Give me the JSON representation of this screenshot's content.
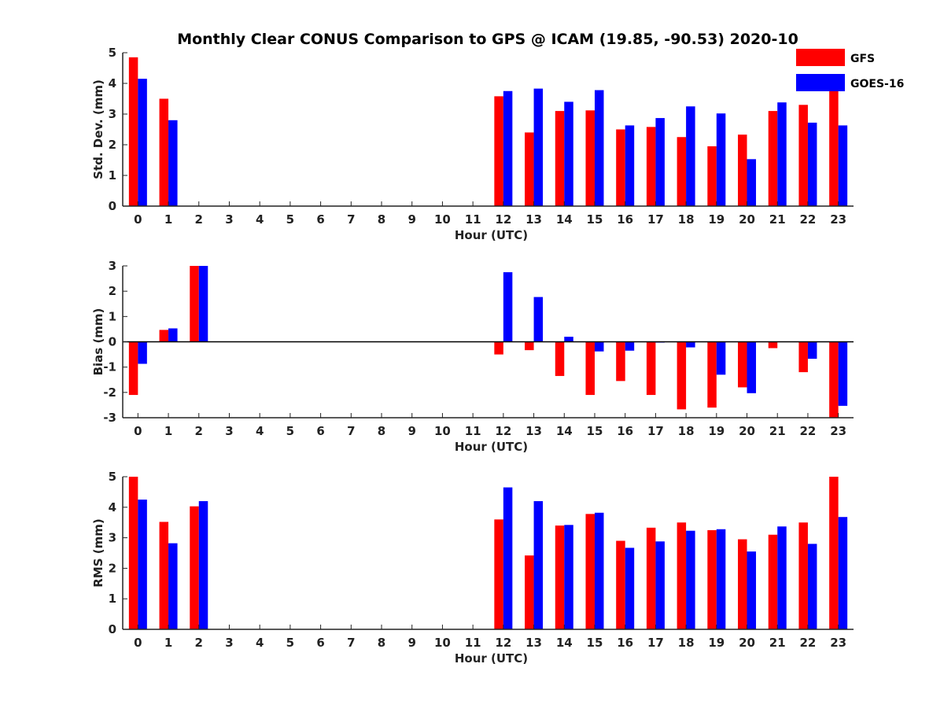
{
  "title": "Monthly Clear CONUS Comparison to GPS @ ICAM (19.85, -90.53) 2020-10",
  "legend": [
    {
      "name": "GFS",
      "color": "#ff0000"
    },
    {
      "name": "GOES-16",
      "color": "#0000ff"
    }
  ],
  "chart_data": [
    {
      "type": "bar",
      "xlabel": "Hour (UTC)",
      "ylabel": "Std. Dev. (mm)",
      "ylim": [
        0,
        5
      ],
      "yticks": [
        "0",
        "1",
        "2",
        "3",
        "4",
        "5"
      ],
      "categories": [
        "0",
        "1",
        "2",
        "3",
        "4",
        "5",
        "6",
        "7",
        "8",
        "9",
        "10",
        "11",
        "12",
        "13",
        "14",
        "15",
        "16",
        "17",
        "18",
        "19",
        "20",
        "21",
        "22",
        "23"
      ],
      "series": [
        {
          "name": "GFS",
          "color": "#ff0000",
          "values": [
            4.85,
            3.5,
            null,
            null,
            null,
            null,
            null,
            null,
            null,
            null,
            null,
            null,
            3.58,
            2.4,
            3.1,
            3.12,
            2.5,
            2.58,
            2.25,
            1.95,
            2.33,
            3.1,
            3.3,
            4.0
          ]
        },
        {
          "name": "GOES-16",
          "color": "#0000ff",
          "values": [
            4.15,
            2.8,
            null,
            null,
            null,
            null,
            null,
            null,
            null,
            null,
            null,
            null,
            3.75,
            3.83,
            3.4,
            3.78,
            2.63,
            2.87,
            3.25,
            3.02,
            1.53,
            3.38,
            2.72,
            2.63
          ]
        }
      ]
    },
    {
      "type": "bar",
      "xlabel": "Hour (UTC)",
      "ylabel": "Bias (mm)",
      "ylim": [
        -3,
        3
      ],
      "yticks": [
        "-3",
        "-2",
        "-1",
        "0",
        "1",
        "2",
        "3"
      ],
      "zeroline": true,
      "categories": [
        "0",
        "1",
        "2",
        "3",
        "4",
        "5",
        "6",
        "7",
        "8",
        "9",
        "10",
        "11",
        "12",
        "13",
        "14",
        "15",
        "16",
        "17",
        "18",
        "19",
        "20",
        "21",
        "22",
        "23"
      ],
      "series": [
        {
          "name": "GFS",
          "color": "#ff0000",
          "values": [
            -2.1,
            0.47,
            3.0,
            null,
            null,
            null,
            null,
            null,
            null,
            null,
            null,
            null,
            -0.5,
            -0.33,
            -1.35,
            -2.1,
            -1.55,
            -2.1,
            -2.67,
            -2.6,
            -1.8,
            -0.25,
            -1.2,
            -3.0
          ]
        },
        {
          "name": "GOES-16",
          "color": "#0000ff",
          "values": [
            -0.87,
            0.53,
            3.0,
            null,
            null,
            null,
            null,
            null,
            null,
            null,
            null,
            null,
            2.75,
            1.77,
            0.2,
            -0.38,
            -0.35,
            -0.03,
            -0.22,
            -1.3,
            -2.03,
            null,
            -0.67,
            -2.53
          ]
        }
      ]
    },
    {
      "type": "bar",
      "xlabel": "Hour (UTC)",
      "ylabel": "RMS (mm)",
      "ylim": [
        0,
        5
      ],
      "yticks": [
        "0",
        "1",
        "2",
        "3",
        "4",
        "5"
      ],
      "categories": [
        "0",
        "1",
        "2",
        "3",
        "4",
        "5",
        "6",
        "7",
        "8",
        "9",
        "10",
        "11",
        "12",
        "13",
        "14",
        "15",
        "16",
        "17",
        "18",
        "19",
        "20",
        "21",
        "22",
        "23"
      ],
      "series": [
        {
          "name": "GFS",
          "color": "#ff0000",
          "values": [
            5.0,
            3.52,
            4.03,
            null,
            null,
            null,
            null,
            null,
            null,
            null,
            null,
            null,
            3.6,
            2.42,
            3.4,
            3.78,
            2.9,
            3.33,
            3.5,
            3.25,
            2.95,
            3.1,
            3.5,
            5.0
          ]
        },
        {
          "name": "GOES-16",
          "color": "#0000ff",
          "values": [
            4.25,
            2.82,
            4.2,
            null,
            null,
            null,
            null,
            null,
            null,
            null,
            null,
            null,
            4.65,
            4.2,
            3.42,
            3.82,
            2.67,
            2.88,
            3.23,
            3.28,
            2.55,
            3.37,
            2.8,
            3.68
          ]
        }
      ]
    }
  ]
}
